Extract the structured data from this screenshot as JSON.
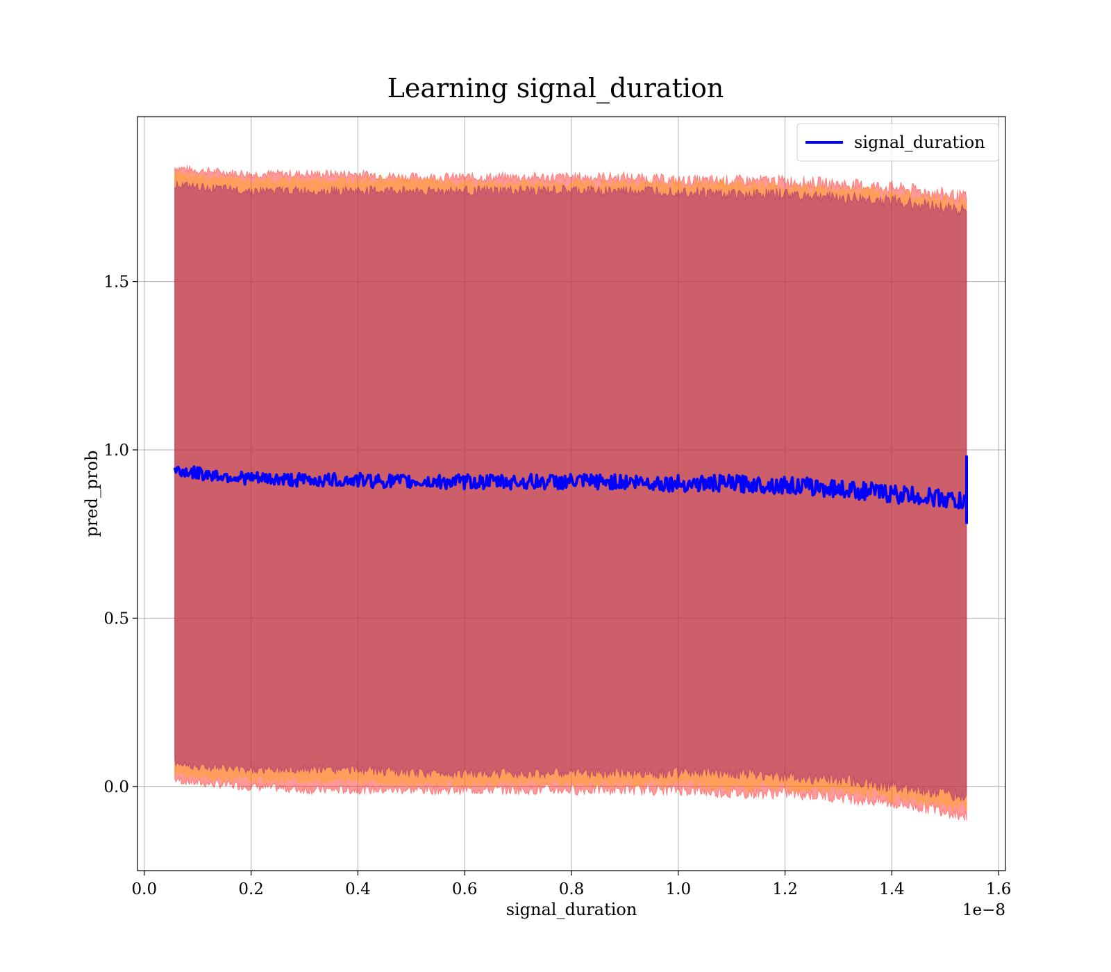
{
  "chart_data": {
    "type": "line",
    "title": "Learning signal_duration",
    "xlabel": "signal_duration",
    "ylabel": "pred_prob",
    "x_offset_label": "1e−8",
    "xlim": [
      -0.0128,
      1.6128
    ],
    "ylim": [
      -0.25,
      1.99
    ],
    "xticks": [
      0.0,
      0.2,
      0.4,
      0.6,
      0.8,
      1.0,
      1.2,
      1.4,
      1.6
    ],
    "xtick_labels": [
      "0.0",
      "0.2",
      "0.4",
      "0.6",
      "0.8",
      "1.0",
      "1.2",
      "1.4",
      "1.6"
    ],
    "yticks": [
      0.0,
      0.5,
      1.0,
      1.5
    ],
    "ytick_labels": [
      "0.0",
      "0.5",
      "1.0",
      "1.5"
    ],
    "grid": true,
    "legend_position": "top-right",
    "series": [
      {
        "name": "signal_duration",
        "color": "#0000ff",
        "x": [
          0.057,
          0.1,
          0.2,
          0.3,
          0.4,
          0.5,
          0.6,
          0.7,
          0.8,
          0.9,
          1.0,
          1.1,
          1.2,
          1.3,
          1.4,
          1.5,
          1.54
        ],
        "values": [
          0.94,
          0.93,
          0.915,
          0.91,
          0.91,
          0.905,
          0.905,
          0.905,
          0.905,
          0.905,
          0.9,
          0.9,
          0.895,
          0.885,
          0.87,
          0.855,
          0.84
        ]
      }
    ],
    "bands": [
      {
        "color": "#ff0000",
        "x": [
          0.057,
          0.1,
          0.2,
          0.3,
          0.4,
          0.5,
          0.6,
          0.7,
          0.8,
          0.9,
          1.0,
          1.1,
          1.2,
          1.3,
          1.4,
          1.5,
          1.54
        ],
        "upper": [
          1.84,
          1.83,
          1.82,
          1.82,
          1.82,
          1.81,
          1.81,
          1.81,
          1.81,
          1.81,
          1.8,
          1.8,
          1.8,
          1.79,
          1.78,
          1.76,
          1.75
        ],
        "lower": [
          0.02,
          0.01,
          0.0,
          -0.01,
          -0.01,
          -0.01,
          -0.01,
          -0.01,
          -0.01,
          -0.01,
          -0.01,
          -0.02,
          -0.02,
          -0.03,
          -0.05,
          -0.07,
          -0.09
        ]
      },
      {
        "color": "#ffa500",
        "x": [
          0.057,
          0.1,
          0.2,
          0.3,
          0.4,
          0.5,
          0.6,
          0.7,
          0.8,
          0.9,
          1.0,
          1.1,
          1.2,
          1.3,
          1.4,
          1.5,
          1.54
        ],
        "upper": [
          1.82,
          1.81,
          1.8,
          1.8,
          1.8,
          1.8,
          1.79,
          1.79,
          1.79,
          1.79,
          1.79,
          1.79,
          1.78,
          1.77,
          1.76,
          1.74,
          1.73
        ],
        "lower": [
          0.04,
          0.03,
          0.02,
          0.02,
          0.02,
          0.01,
          0.01,
          0.01,
          0.01,
          0.01,
          0.01,
          0.0,
          0.0,
          -0.01,
          -0.03,
          -0.05,
          -0.06
        ]
      },
      {
        "color": "#800080",
        "x": [
          0.057,
          0.1,
          0.2,
          0.3,
          0.4,
          0.5,
          0.6,
          0.7,
          0.8,
          0.9,
          1.0,
          1.1,
          1.2,
          1.3,
          1.4,
          1.5,
          1.54
        ],
        "upper": [
          1.79,
          1.78,
          1.77,
          1.77,
          1.77,
          1.77,
          1.77,
          1.77,
          1.77,
          1.77,
          1.77,
          1.76,
          1.76,
          1.75,
          1.74,
          1.72,
          1.71
        ],
        "lower": [
          0.07,
          0.06,
          0.05,
          0.05,
          0.05,
          0.04,
          0.04,
          0.04,
          0.04,
          0.04,
          0.04,
          0.04,
          0.03,
          0.02,
          0.0,
          -0.02,
          -0.03
        ]
      }
    ]
  }
}
